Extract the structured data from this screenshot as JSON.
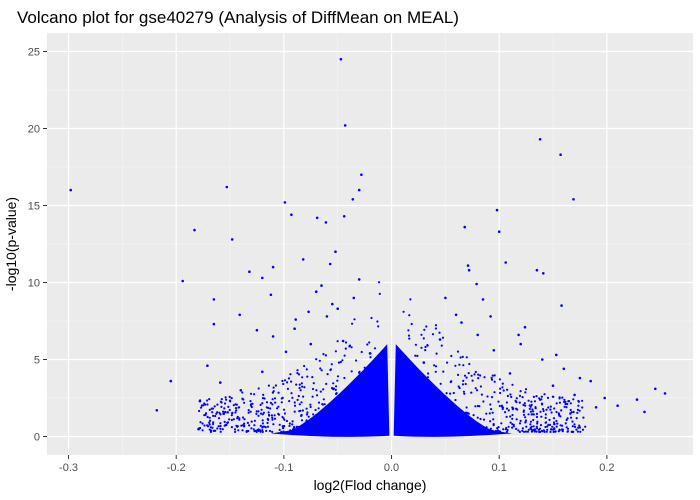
{
  "chart_data": {
    "type": "scatter",
    "title": "Volcano plot for gse40279 (Analysis of DiffMean on MEAL)",
    "xlabel": "log2(Flod change)",
    "ylabel": "-log10(p-value)",
    "xlim": [
      -0.32,
      0.28
    ],
    "ylim": [
      -1.2,
      26.2
    ],
    "x_ticks": [
      -0.3,
      -0.2,
      -0.1,
      0.0,
      0.1,
      0.2
    ],
    "x_tick_labels": [
      "-0.3",
      "-0.2",
      "-0.1",
      "0.0",
      "0.1",
      "0.2"
    ],
    "y_ticks": [
      0,
      5,
      10,
      15,
      20,
      25
    ],
    "y_tick_labels": [
      "0",
      "5",
      "10",
      "15",
      "20",
      "25"
    ],
    "grid": true,
    "legend": "none",
    "point_color": "#0000ff",
    "panel_color": "#ebebeb",
    "series": [
      {
        "x": [
          -0.298,
          -0.047,
          -0.043,
          -0.153,
          -0.099,
          -0.093,
          -0.069,
          -0.061,
          -0.044,
          -0.03,
          -0.183,
          -0.148,
          -0.036,
          -0.052,
          -0.057,
          -0.132,
          -0.12,
          -0.11,
          -0.082,
          -0.028,
          -0.194,
          -0.165,
          -0.141,
          -0.112,
          -0.077,
          -0.065,
          -0.165,
          -0.055,
          -0.089,
          -0.125,
          -0.171,
          -0.205,
          -0.218,
          -0.159,
          -0.098,
          -0.12,
          -0.14,
          -0.178,
          -0.11,
          -0.09,
          -0.075,
          -0.06,
          -0.045,
          -0.035,
          -0.02,
          -0.012,
          -0.008,
          -0.03,
          -0.05,
          -0.07,
          0.138,
          0.157,
          0.169,
          0.098,
          0.068,
          0.071,
          0.1,
          0.072,
          0.079,
          0.106,
          0.135,
          0.141,
          0.158,
          0.124,
          0.118,
          0.092,
          0.085,
          0.153,
          0.175,
          0.198,
          0.245,
          0.228,
          0.254,
          0.235,
          0.21,
          0.185,
          0.16,
          0.14,
          0.12,
          0.095,
          0.08,
          0.06,
          0.045,
          0.03,
          0.018,
          0.01,
          0.05,
          0.065,
          0.19,
          0.17,
          0.15,
          0.11
        ],
        "y": [
          16.0,
          24.5,
          20.2,
          16.2,
          15.2,
          14.4,
          14.2,
          13.9,
          14.3,
          16.0,
          13.4,
          12.8,
          15.4,
          12.0,
          11.2,
          10.7,
          10.3,
          11.0,
          11.5,
          17.0,
          10.1,
          8.9,
          7.9,
          9.2,
          8.1,
          9.8,
          7.3,
          8.6,
          7.6,
          6.9,
          4.6,
          3.6,
          1.7,
          3.5,
          5.5,
          4.2,
          3.0,
          2.3,
          6.5,
          7.0,
          6.0,
          7.8,
          6.2,
          9.0,
          5.4,
          4.9,
          3.2,
          10.2,
          8.3,
          9.4,
          19.3,
          18.3,
          15.4,
          14.7,
          13.6,
          11.1,
          13.3,
          10.8,
          9.9,
          11.3,
          10.8,
          10.6,
          8.5,
          7.1,
          6.6,
          7.8,
          8.9,
          5.3,
          3.8,
          2.5,
          3.1,
          2.4,
          2.8,
          1.6,
          2.0,
          3.6,
          4.4,
          5.0,
          6.0,
          5.6,
          6.6,
          7.9,
          6.3,
          4.8,
          3.9,
          2.2,
          9.0,
          7.4,
          1.9,
          2.7,
          3.3,
          4.1
        ]
      }
    ]
  }
}
